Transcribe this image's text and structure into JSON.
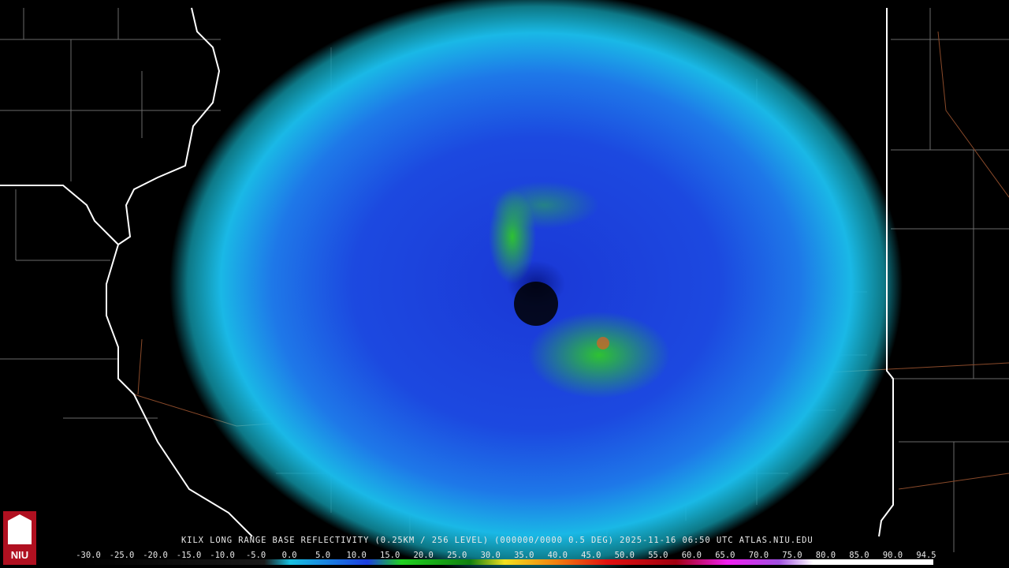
{
  "logo": {
    "text": "NIU"
  },
  "caption": "KILX LONG RANGE BASE REFLECTIVITY (0.25KM / 256 LEVEL) (000000/0000 0.5 DEG) 2025-11-16 06:50 UTC  ATLAS.NIU.EDU",
  "colorbar": {
    "labels": [
      "-30.0",
      "-25.0",
      "-20.0",
      "-15.0",
      "-10.0",
      "-5.0",
      "0.0",
      "5.0",
      "10.0",
      "15.0",
      "20.0",
      "25.0",
      "30.0",
      "35.0",
      "40.0",
      "45.0",
      "50.0",
      "55.0",
      "60.0",
      "65.0",
      "70.0",
      "75.0",
      "80.0",
      "85.0",
      "90.0",
      "94.5"
    ]
  }
}
